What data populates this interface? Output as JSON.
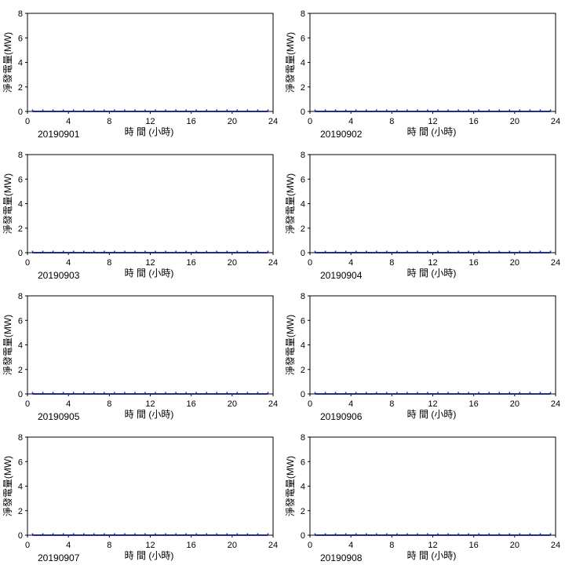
{
  "chart_data": [
    {
      "type": "line",
      "title": "20190901",
      "xlabel": "時 間 (小時)",
      "ylabel": "淨發電量(MW)",
      "xlim": [
        0,
        24
      ],
      "ylim": [
        0,
        8
      ],
      "xticks": [
        "0",
        "4",
        "8",
        "12",
        "16",
        "20",
        "24"
      ],
      "yticks": [
        "0",
        "2",
        "4",
        "6",
        "8"
      ],
      "grid": false,
      "series": [
        {
          "x": [
            0.5,
            1.5,
            2.5,
            3.5,
            4.5,
            5.5,
            6.5,
            7.5,
            8.5,
            9.5,
            10.5,
            11.5,
            12.5,
            13.5,
            14.5,
            15.5,
            16.5,
            17.5,
            18.5,
            19.5,
            20.5,
            21.5,
            22.5,
            23.5
          ],
          "values": [
            0,
            0,
            0,
            0,
            0,
            0,
            0,
            0,
            0,
            0,
            0,
            0,
            0,
            0,
            0,
            0,
            0,
            0,
            0,
            0,
            0,
            0,
            0,
            0
          ],
          "color": "#1f2e8c"
        }
      ]
    },
    {
      "type": "line",
      "title": "20190902",
      "xlabel": "時 間 (小時)",
      "ylabel": "淨發電量(MW)",
      "xlim": [
        0,
        24
      ],
      "ylim": [
        0,
        8
      ],
      "xticks": [
        "0",
        "4",
        "8",
        "12",
        "16",
        "20",
        "24"
      ],
      "yticks": [
        "0",
        "2",
        "4",
        "6",
        "8"
      ],
      "grid": false,
      "series": [
        {
          "x": [
            0.5,
            1.5,
            2.5,
            3.5,
            4.5,
            5.5,
            6.5,
            7.5,
            8.5,
            9.5,
            10.5,
            11.5,
            12.5,
            13.5,
            14.5,
            15.5,
            16.5,
            17.5,
            18.5,
            19.5,
            20.5,
            21.5,
            22.5,
            23.5
          ],
          "values": [
            0,
            0,
            0,
            0,
            0,
            0,
            0,
            0,
            0,
            0,
            0,
            0,
            0,
            0,
            0,
            0,
            0,
            0,
            0,
            0,
            0,
            0,
            0,
            0
          ],
          "color": "#1f2e8c"
        }
      ]
    },
    {
      "type": "line",
      "title": "20190903",
      "xlabel": "時 間 (小時)",
      "ylabel": "淨發電量(MW)",
      "xlim": [
        0,
        24
      ],
      "ylim": [
        0,
        8
      ],
      "xticks": [
        "0",
        "4",
        "8",
        "12",
        "16",
        "20",
        "24"
      ],
      "yticks": [
        "0",
        "2",
        "4",
        "6",
        "8"
      ],
      "grid": false,
      "series": [
        {
          "x": [
            0.5,
            1.5,
            2.5,
            3.5,
            4.5,
            5.5,
            6.5,
            7.5,
            8.5,
            9.5,
            10.5,
            11.5,
            12.5,
            13.5,
            14.5,
            15.5,
            16.5,
            17.5,
            18.5,
            19.5,
            20.5,
            21.5,
            22.5,
            23.5
          ],
          "values": [
            0,
            0,
            0,
            0,
            0,
            0,
            0,
            0,
            0,
            0,
            0,
            0,
            0,
            0,
            0,
            0,
            0,
            0,
            0,
            0,
            0,
            0,
            0,
            0
          ],
          "color": "#1f2e8c"
        }
      ]
    },
    {
      "type": "line",
      "title": "20190904",
      "xlabel": "時 間 (小時)",
      "ylabel": "淨發電量(MW)",
      "xlim": [
        0,
        24
      ],
      "ylim": [
        0,
        8
      ],
      "xticks": [
        "0",
        "4",
        "8",
        "12",
        "16",
        "20",
        "24"
      ],
      "yticks": [
        "0",
        "2",
        "4",
        "6",
        "8"
      ],
      "grid": false,
      "series": [
        {
          "x": [
            0.5,
            1.5,
            2.5,
            3.5,
            4.5,
            5.5,
            6.5,
            7.5,
            8.5,
            9.5,
            10.5,
            11.5,
            12.5,
            13.5,
            14.5,
            15.5,
            16.5,
            17.5,
            18.5,
            19.5,
            20.5,
            21.5,
            22.5,
            23.5
          ],
          "values": [
            0,
            0,
            0,
            0,
            0,
            0,
            0,
            0,
            0,
            0,
            0,
            0,
            0,
            0,
            0,
            0,
            0,
            0,
            0,
            0,
            0,
            0,
            0,
            0
          ],
          "color": "#1f2e8c"
        }
      ]
    },
    {
      "type": "line",
      "title": "20190905",
      "xlabel": "時 間 (小時)",
      "ylabel": "淨發電量(MW)",
      "xlim": [
        0,
        24
      ],
      "ylim": [
        0,
        8
      ],
      "xticks": [
        "0",
        "4",
        "8",
        "12",
        "16",
        "20",
        "24"
      ],
      "yticks": [
        "0",
        "2",
        "4",
        "6",
        "8"
      ],
      "grid": false,
      "series": [
        {
          "x": [
            0.5,
            1.5,
            2.5,
            3.5,
            4.5,
            5.5,
            6.5,
            7.5,
            8.5,
            9.5,
            10.5,
            11.5,
            12.5,
            13.5,
            14.5,
            15.5,
            16.5,
            17.5,
            18.5,
            19.5,
            20.5,
            21.5,
            22.5,
            23.5
          ],
          "values": [
            0,
            0,
            0,
            0,
            0,
            0,
            0,
            0,
            0,
            0,
            0,
            0,
            0,
            0,
            0,
            0,
            0,
            0,
            0,
            0,
            0,
            0,
            0,
            0
          ],
          "color": "#1f2e8c"
        }
      ]
    },
    {
      "type": "line",
      "title": "20190906",
      "xlabel": "時 間 (小時)",
      "ylabel": "淨發電量(MW)",
      "xlim": [
        0,
        24
      ],
      "ylim": [
        0,
        8
      ],
      "xticks": [
        "0",
        "4",
        "8",
        "12",
        "16",
        "20",
        "24"
      ],
      "yticks": [
        "0",
        "2",
        "4",
        "6",
        "8"
      ],
      "grid": false,
      "series": [
        {
          "x": [
            0.5,
            1.5,
            2.5,
            3.5,
            4.5,
            5.5,
            6.5,
            7.5,
            8.5,
            9.5,
            10.5,
            11.5,
            12.5,
            13.5,
            14.5,
            15.5,
            16.5,
            17.5,
            18.5,
            19.5,
            20.5,
            21.5,
            22.5,
            23.5
          ],
          "values": [
            0,
            0,
            0,
            0,
            0,
            0,
            0,
            0,
            0,
            0,
            0,
            0,
            0,
            0,
            0,
            0,
            0,
            0,
            0,
            0,
            0,
            0,
            0,
            0
          ],
          "color": "#1f2e8c"
        }
      ]
    },
    {
      "type": "line",
      "title": "20190907",
      "xlabel": "時 間 (小時)",
      "ylabel": "淨發電量(MW)",
      "xlim": [
        0,
        24
      ],
      "ylim": [
        0,
        8
      ],
      "xticks": [
        "0",
        "4",
        "8",
        "12",
        "16",
        "20",
        "24"
      ],
      "yticks": [
        "0",
        "2",
        "4",
        "6",
        "8"
      ],
      "grid": false,
      "series": [
        {
          "x": [
            0.5,
            1.5,
            2.5,
            3.5,
            4.5,
            5.5,
            6.5,
            7.5,
            8.5,
            9.5,
            10.5,
            11.5,
            12.5,
            13.5,
            14.5,
            15.5,
            16.5,
            17.5,
            18.5,
            19.5,
            20.5,
            21.5,
            22.5,
            23.5
          ],
          "values": [
            0,
            0,
            0,
            0,
            0,
            0,
            0,
            0,
            0,
            0,
            0,
            0,
            0,
            0,
            0,
            0,
            0,
            0,
            0,
            0,
            0,
            0,
            0,
            0
          ],
          "color": "#1f2e8c"
        }
      ]
    },
    {
      "type": "line",
      "title": "20190908",
      "xlabel": "時 間 (小時)",
      "ylabel": "淨發電量(MW)",
      "xlim": [
        0,
        24
      ],
      "ylim": [
        0,
        8
      ],
      "xticks": [
        "0",
        "4",
        "8",
        "12",
        "16",
        "20",
        "24"
      ],
      "yticks": [
        "0",
        "2",
        "4",
        "6",
        "8"
      ],
      "grid": false,
      "series": [
        {
          "x": [
            0.5,
            1.5,
            2.5,
            3.5,
            4.5,
            5.5,
            6.5,
            7.5,
            8.5,
            9.5,
            10.5,
            11.5,
            12.5,
            13.5,
            14.5,
            15.5,
            16.5,
            17.5,
            18.5,
            19.5,
            20.5,
            21.5,
            22.5,
            23.5
          ],
          "values": [
            0,
            0,
            0,
            0,
            0,
            0,
            0,
            0,
            0,
            0,
            0,
            0,
            0,
            0,
            0,
            0,
            0,
            0,
            0,
            0,
            0,
            0,
            0,
            0
          ],
          "color": "#1f2e8c"
        }
      ]
    }
  ]
}
